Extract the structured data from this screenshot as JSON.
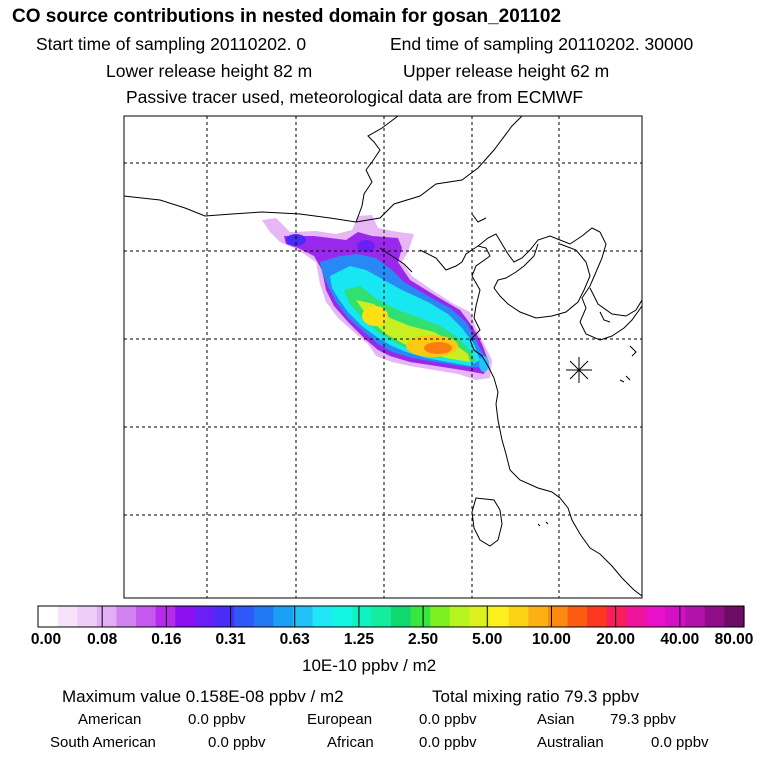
{
  "header": {
    "title": "CO  source contributions in nested domain for gosan_201102",
    "start_time": "Start time of sampling 20110202.     0",
    "end_time": "End time of sampling 20110202. 30000",
    "lower_height": "Lower release height   82 m",
    "upper_height": "Upper release height   62 m",
    "tracer_note": "Passive tracer used, meteorological data are from ECMWF"
  },
  "legend": {
    "colors": [
      "#ffffff",
      "#f6e2fb",
      "#eecdf8",
      "#e2aef5",
      "#d283f2",
      "#c458ef",
      "#b82aee",
      "#8a10f0",
      "#6a20f4",
      "#4a2cf6",
      "#3058f8",
      "#2078f4",
      "#1a9ef6",
      "#20c2f8",
      "#20e6f8",
      "#12f6e6",
      "#10f2c2",
      "#14ec9e",
      "#10d870",
      "#38e640",
      "#7ef020",
      "#b8f420",
      "#dcf020",
      "#fcf020",
      "#fcd214",
      "#fcb014",
      "#fc8a10",
      "#fc5c10",
      "#fc3820",
      "#f81e5a",
      "#f0149c",
      "#e810c8",
      "#d410c6",
      "#b410aa",
      "#900e8a",
      "#6c0c64"
    ],
    "tick_labels": [
      "0.00",
      "0.08",
      "0.16",
      "0.31",
      "0.63",
      "1.25",
      "2.50",
      "5.00",
      "10.00",
      "20.00",
      "40.00",
      "80.00"
    ],
    "unit": "10E-10 ppbv / m2"
  },
  "stats": {
    "max_value": "Maximum value  0.158E-08 ppbv / m2",
    "total_mixing": "Total mixing ratio      79.3 ppbv",
    "regions": [
      {
        "label": "American",
        "value": "0.0 ppbv"
      },
      {
        "label": "European",
        "value": "0.0 ppbv"
      },
      {
        "label": "Asian",
        "value": "79.3 ppbv"
      },
      {
        "label": "South American",
        "value": "0.0 ppbv"
      },
      {
        "label": "African",
        "value": "0.0 ppbv"
      },
      {
        "label": "Australian",
        "value": "0.0 ppbv"
      }
    ]
  },
  "map": {
    "receptor_marker": "asterisk-marker"
  }
}
